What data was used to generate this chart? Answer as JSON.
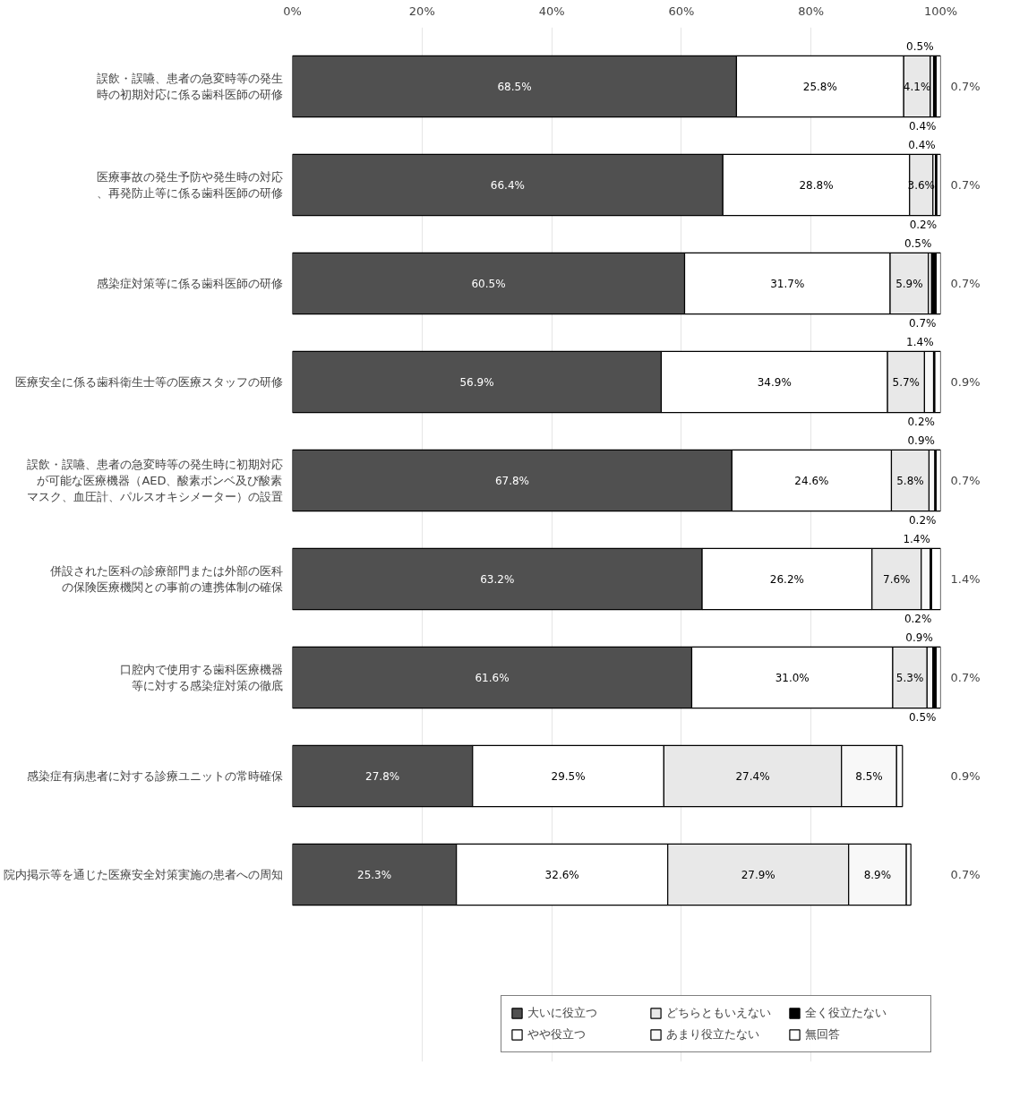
{
  "chart_data": {
    "type": "bar",
    "orientation": "horizontal",
    "stacked": true,
    "categories": [
      "誤飲・誤嚥、患者の急変時等の発生時の初期対応に係る歯科医師の研修",
      "医療事故の発生予防や発生時の対応、再発防止等に係る歯科医師の研修",
      "感染症対策等に係る歯科医師の研修",
      "医療安全に係る歯科衛生士等の医療スタッフの研修",
      "誤飲・誤嚥、患者の急変時等の発生時に初期対応が可能な医療機器（AED、酸素ボンベ及び酸素マスク、血圧計、パルスオキシメーター）の設置",
      "併設された医科の診療部門または外部の医科の保険医療機関との事前の連携体制の確保",
      "口腔内で使用する歯科医療機器等に対する感染症対策の徹底",
      "感染症有病患者に対する診療ユニットの常時確保",
      "院内掲示等を通じた医療安全対策実施の患者への周知"
    ],
    "series": [
      {
        "name": "大いに役立つ",
        "color": "#505050",
        "values": [
          68.5,
          66.4,
          60.5,
          56.9,
          67.8,
          63.2,
          61.6,
          27.8,
          25.3
        ],
        "value_labels": [
          "68.5%",
          "66.4%",
          "60.5%",
          "56.9%",
          "67.8%",
          "63.2%",
          "61.6%",
          "27.8%",
          "25.3%"
        ]
      },
      {
        "name": "やや役立つ",
        "color": "#ffffff",
        "values": [
          25.8,
          28.8,
          31.7,
          34.9,
          24.6,
          26.2,
          31.0,
          29.5,
          32.6
        ],
        "value_labels": [
          "25.8%",
          "28.8%",
          "31.7%",
          "34.9%",
          "24.6%",
          "26.2%",
          "31.0%",
          "29.5%",
          "32.6%"
        ]
      },
      {
        "name": "どちらともいえない",
        "color": "#e8e8e8",
        "values": [
          4.1,
          3.6,
          5.9,
          5.7,
          5.8,
          7.6,
          5.3,
          27.4,
          27.9
        ],
        "value_labels": [
          "4.1%",
          "3.6%",
          "5.9%",
          "5.7%",
          "5.8%",
          "7.6%",
          "5.3%",
          "27.4%",
          "27.9%"
        ]
      },
      {
        "name": "あまり役立たない",
        "color": "#f8f8f8",
        "values": [
          0.5,
          0.4,
          0.5,
          1.4,
          0.9,
          1.4,
          0.9,
          8.5,
          8.9
        ],
        "value_labels": [
          "0.5%",
          "0.4%",
          "0.5%",
          "1.4%",
          "0.9%",
          "1.4%",
          "0.9%",
          "8.5%",
          "8.9%"
        ]
      },
      {
        "name": "全く役立たない",
        "color": "#000000",
        "values": [
          0.4,
          0.2,
          0.7,
          0.2,
          0.2,
          0.2,
          0.5,
          null,
          null
        ],
        "value_labels": [
          "0.4%",
          "0.2%",
          "0.7%",
          "0.2%",
          "0.2%",
          "0.2%",
          "0.5%",
          null,
          null
        ]
      },
      {
        "name": "無回答",
        "color": "#ffffff",
        "values": [
          0.7,
          0.7,
          0.7,
          0.9,
          0.7,
          1.4,
          0.7,
          0.9,
          0.7
        ],
        "value_labels": [
          "0.7%",
          "0.7%",
          "0.7%",
          "0.9%",
          "0.7%",
          "1.4%",
          "0.7%",
          "0.9%",
          "0.7%"
        ]
      }
    ],
    "xlim": [
      0,
      100
    ],
    "xticks": [
      {
        "value": 0,
        "label": "0%"
      },
      {
        "value": 20,
        "label": "20%"
      },
      {
        "value": 40,
        "label": "40%"
      },
      {
        "value": 60,
        "label": "60%"
      },
      {
        "value": 80,
        "label": "80%"
      },
      {
        "value": 100,
        "label": "100%"
      }
    ],
    "grid": "x",
    "legend": "bottom"
  }
}
